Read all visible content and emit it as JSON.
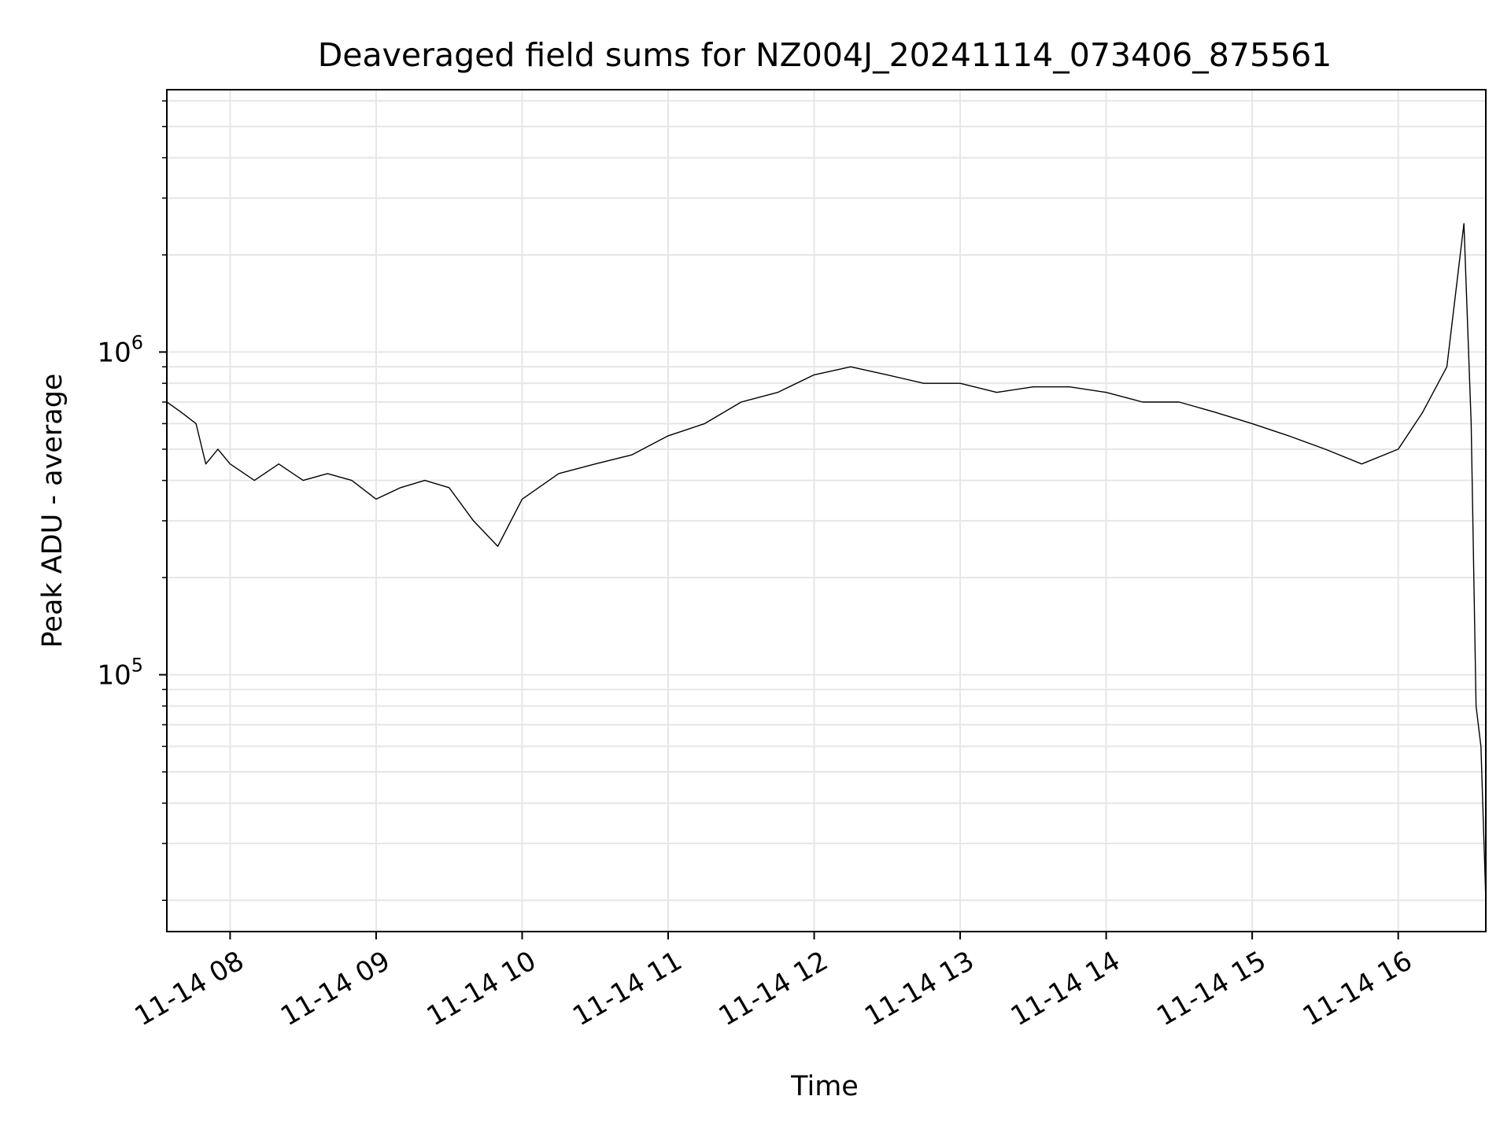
{
  "chart_data": {
    "type": "line",
    "title": "Deaveraged field sums for NZ004J_20241114_073406_875561",
    "xlabel": "Time",
    "ylabel": "Peak ADU - average",
    "yscale": "log",
    "ylim": [
      16000,
      6500000
    ],
    "xlim": [
      "2024-11-14 07:34",
      "2024-11-14 16:36"
    ],
    "grid": true,
    "legend": "none",
    "line_color": "#000000",
    "x_ticks": [
      {
        "t": "2024-11-14 08:00",
        "label": "11-14 08"
      },
      {
        "t": "2024-11-14 09:00",
        "label": "11-14 09"
      },
      {
        "t": "2024-11-14 10:00",
        "label": "11-14 10"
      },
      {
        "t": "2024-11-14 11:00",
        "label": "11-14 11"
      },
      {
        "t": "2024-11-14 12:00",
        "label": "11-14 12"
      },
      {
        "t": "2024-11-14 13:00",
        "label": "11-14 13"
      },
      {
        "t": "2024-11-14 14:00",
        "label": "11-14 14"
      },
      {
        "t": "2024-11-14 15:00",
        "label": "11-14 15"
      },
      {
        "t": "2024-11-14 16:00",
        "label": "11-14 16"
      }
    ],
    "y_ticks": [
      {
        "value": 100000,
        "base": "10",
        "exp": "5"
      },
      {
        "value": 1000000,
        "base": "10",
        "exp": "6"
      }
    ],
    "series": [
      {
        "x": [
          "2024-11-14 07:34",
          "2024-11-14 07:40",
          "2024-11-14 07:46",
          "2024-11-14 07:50",
          "2024-11-14 07:55",
          "2024-11-14 08:00",
          "2024-11-14 08:10",
          "2024-11-14 08:20",
          "2024-11-14 08:30",
          "2024-11-14 08:40",
          "2024-11-14 08:50",
          "2024-11-14 09:00",
          "2024-11-14 09:10",
          "2024-11-14 09:20",
          "2024-11-14 09:30",
          "2024-11-14 09:40",
          "2024-11-14 09:50",
          "2024-11-14 10:00",
          "2024-11-14 10:15",
          "2024-11-14 10:30",
          "2024-11-14 10:45",
          "2024-11-14 11:00",
          "2024-11-14 11:15",
          "2024-11-14 11:30",
          "2024-11-14 11:45",
          "2024-11-14 12:00",
          "2024-11-14 12:15",
          "2024-11-14 12:30",
          "2024-11-14 12:45",
          "2024-11-14 13:00",
          "2024-11-14 13:15",
          "2024-11-14 13:30",
          "2024-11-14 13:45",
          "2024-11-14 14:00",
          "2024-11-14 14:15",
          "2024-11-14 14:30",
          "2024-11-14 14:45",
          "2024-11-14 15:00",
          "2024-11-14 15:15",
          "2024-11-14 15:30",
          "2024-11-14 15:45",
          "2024-11-14 16:00",
          "2024-11-14 16:10",
          "2024-11-14 16:20",
          "2024-11-14 16:27",
          "2024-11-14 16:30",
          "2024-11-14 16:32",
          "2024-11-14 16:34",
          "2024-11-14 16:36"
        ],
        "values": [
          700000,
          650000,
          600000,
          450000,
          500000,
          450000,
          400000,
          450000,
          400000,
          420000,
          400000,
          350000,
          380000,
          400000,
          380000,
          300000,
          250000,
          350000,
          420000,
          450000,
          480000,
          550000,
          600000,
          700000,
          750000,
          850000,
          900000,
          850000,
          800000,
          800000,
          750000,
          780000,
          780000,
          750000,
          700000,
          700000,
          650000,
          600000,
          550000,
          500000,
          450000,
          500000,
          650000,
          900000,
          2500000,
          600000,
          80000,
          60000,
          20000
        ]
      }
    ]
  }
}
